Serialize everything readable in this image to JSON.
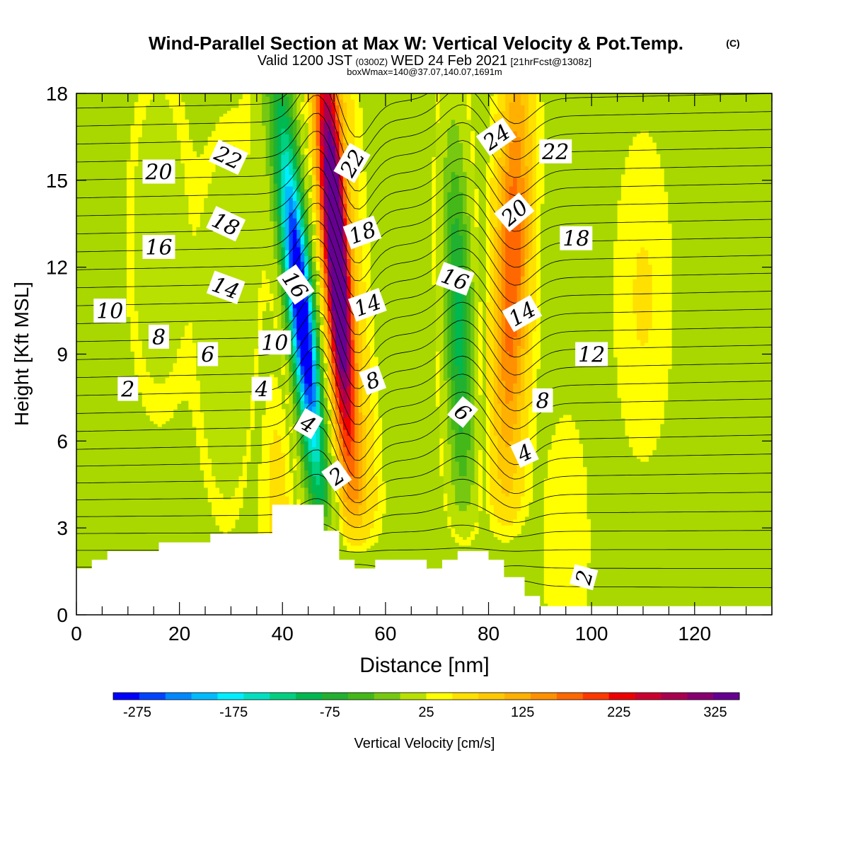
{
  "chart_data": {
    "type": "heatmap",
    "title": "Wind-Parallel Section at Max W: Vertical Velocity & Pot.Temp.",
    "title_mark": "(C)",
    "subtitle": {
      "prefix": "Valid 1200 JST",
      "zulu": "(0300Z)",
      "date": "WED 24 Feb 2021",
      "forecast": "[21hrFcst@1308z]"
    },
    "subtitle2": "boxWmax=140@37.07,140.07,1691m",
    "xlabel": "Distance [nm]",
    "ylabel": "Height [Kft MSL]",
    "xlim": [
      0,
      135
    ],
    "ylim": [
      0,
      18
    ],
    "x_ticks": [
      "0",
      "20",
      "40",
      "60",
      "80",
      "100",
      "120"
    ],
    "y_ticks": [
      "0",
      "3",
      "6",
      "9",
      "12",
      "15",
      "18"
    ],
    "colorbar": {
      "label": "Vertical Velocity [cm/s]",
      "tick_labels": [
        "-275",
        "-175",
        "-75",
        "25",
        "125",
        "225",
        "325"
      ],
      "tick_values": [
        -275,
        -175,
        -75,
        25,
        125,
        225,
        325
      ],
      "range": [
        -300,
        350
      ],
      "step": 25,
      "colors": [
        "#0000ff",
        "#0044ff",
        "#0088ff",
        "#00bbff",
        "#00eeff",
        "#00e0c0",
        "#00d080",
        "#00b850",
        "#22b030",
        "#44b818",
        "#77c810",
        "#b8e000",
        "#ffff00",
        "#ffe000",
        "#ffc800",
        "#ffb000",
        "#ff9000",
        "#ff6800",
        "#ff3800",
        "#ee0000",
        "#cc0030",
        "#aa0050",
        "#880070",
        "#660090"
      ]
    },
    "vertical_velocity_cm_s": {
      "background": 10,
      "features": [
        {
          "x": 45,
          "y": 11,
          "peak": -290
        },
        {
          "x": 52,
          "y": 11,
          "peak": 330
        },
        {
          "x": 74,
          "y": 10,
          "peak": -110
        },
        {
          "x": 84,
          "y": 11,
          "peak": 140
        },
        {
          "x": 30,
          "y": 10,
          "peak": -60
        },
        {
          "x": 40,
          "y": 5,
          "peak": 40
        },
        {
          "x": 16,
          "y": 13,
          "peak": -40
        },
        {
          "x": 110,
          "y": 11,
          "peak": 30
        },
        {
          "x": 95,
          "y": 2.5,
          "peak": 20
        }
      ]
    },
    "terrain_top_kft": [
      {
        "x": 0,
        "h": 1.6
      },
      {
        "x": 3,
        "h": 1.9
      },
      {
        "x": 6,
        "h": 2.2
      },
      {
        "x": 16,
        "h": 2.5
      },
      {
        "x": 26,
        "h": 2.8
      },
      {
        "x": 38,
        "h": 3.8
      },
      {
        "x": 48,
        "h": 2.9
      },
      {
        "x": 51,
        "h": 1.9
      },
      {
        "x": 54,
        "h": 1.6
      },
      {
        "x": 58,
        "h": 1.9
      },
      {
        "x": 68,
        "h": 1.6
      },
      {
        "x": 71,
        "h": 1.9
      },
      {
        "x": 74,
        "h": 2.2
      },
      {
        "x": 80,
        "h": 1.9
      },
      {
        "x": 83,
        "h": 1.3
      },
      {
        "x": 87,
        "h": 0.65
      },
      {
        "x": 90,
        "h": 0.3
      },
      {
        "x": 135,
        "h": 0.3
      }
    ],
    "potential_temperature_contours": {
      "units": "C",
      "levels_labeled": [
        2,
        4,
        6,
        8,
        10,
        12,
        14,
        16,
        18,
        20,
        22,
        24
      ],
      "labels": [
        {
          "text": "2",
          "x": 10,
          "y": 7.8,
          "rot": 0
        },
        {
          "text": "4",
          "x": 36,
          "y": 7.8,
          "rot": 0
        },
        {
          "text": "6",
          "x": 25.5,
          "y": 9.0,
          "rot": 0
        },
        {
          "text": "8",
          "x": 16,
          "y": 9.6,
          "rot": 0
        },
        {
          "text": "10",
          "x": 6.5,
          "y": 10.5,
          "rot": 0
        },
        {
          "text": "10",
          "x": 38.5,
          "y": 9.4,
          "rot": 0
        },
        {
          "text": "14",
          "x": 29,
          "y": 11.3,
          "rot": 20
        },
        {
          "text": "16",
          "x": 16,
          "y": 12.7,
          "rot": 0
        },
        {
          "text": "16",
          "x": 42.5,
          "y": 11.4,
          "rot": 55
        },
        {
          "text": "18",
          "x": 29,
          "y": 13.5,
          "rot": 25
        },
        {
          "text": "20",
          "x": 16,
          "y": 15.3,
          "rot": 0
        },
        {
          "text": "22",
          "x": 29.5,
          "y": 15.8,
          "rot": 25
        },
        {
          "text": "2",
          "x": 50.5,
          "y": 4.8,
          "rot": -35
        },
        {
          "text": "4",
          "x": 45,
          "y": 6.6,
          "rot": 30
        },
        {
          "text": "8",
          "x": 57.5,
          "y": 8.1,
          "rot": -20
        },
        {
          "text": "14",
          "x": 56.5,
          "y": 10.7,
          "rot": -20
        },
        {
          "text": "18",
          "x": 55.5,
          "y": 13.2,
          "rot": -20
        },
        {
          "text": "22",
          "x": 53.5,
          "y": 15.6,
          "rot": -60
        },
        {
          "text": "6",
          "x": 75,
          "y": 7.0,
          "rot": 40
        },
        {
          "text": "16",
          "x": 73.5,
          "y": 11.6,
          "rot": 20
        },
        {
          "text": "4",
          "x": 87,
          "y": 5.6,
          "rot": -25
        },
        {
          "text": "8",
          "x": 90.5,
          "y": 7.4,
          "rot": 0
        },
        {
          "text": "14",
          "x": 86.5,
          "y": 10.4,
          "rot": -30
        },
        {
          "text": "20",
          "x": 85,
          "y": 13.9,
          "rot": -40
        },
        {
          "text": "24",
          "x": 81.5,
          "y": 16.5,
          "rot": -35
        },
        {
          "text": "22",
          "x": 93,
          "y": 16.0,
          "rot": 0
        },
        {
          "text": "18",
          "x": 97,
          "y": 13.0,
          "rot": 0
        },
        {
          "text": "12",
          "x": 100,
          "y": 9.0,
          "rot": 0
        },
        {
          "text": "2",
          "x": 98.5,
          "y": 1.3,
          "rot": -75
        }
      ]
    },
    "grid": false
  }
}
